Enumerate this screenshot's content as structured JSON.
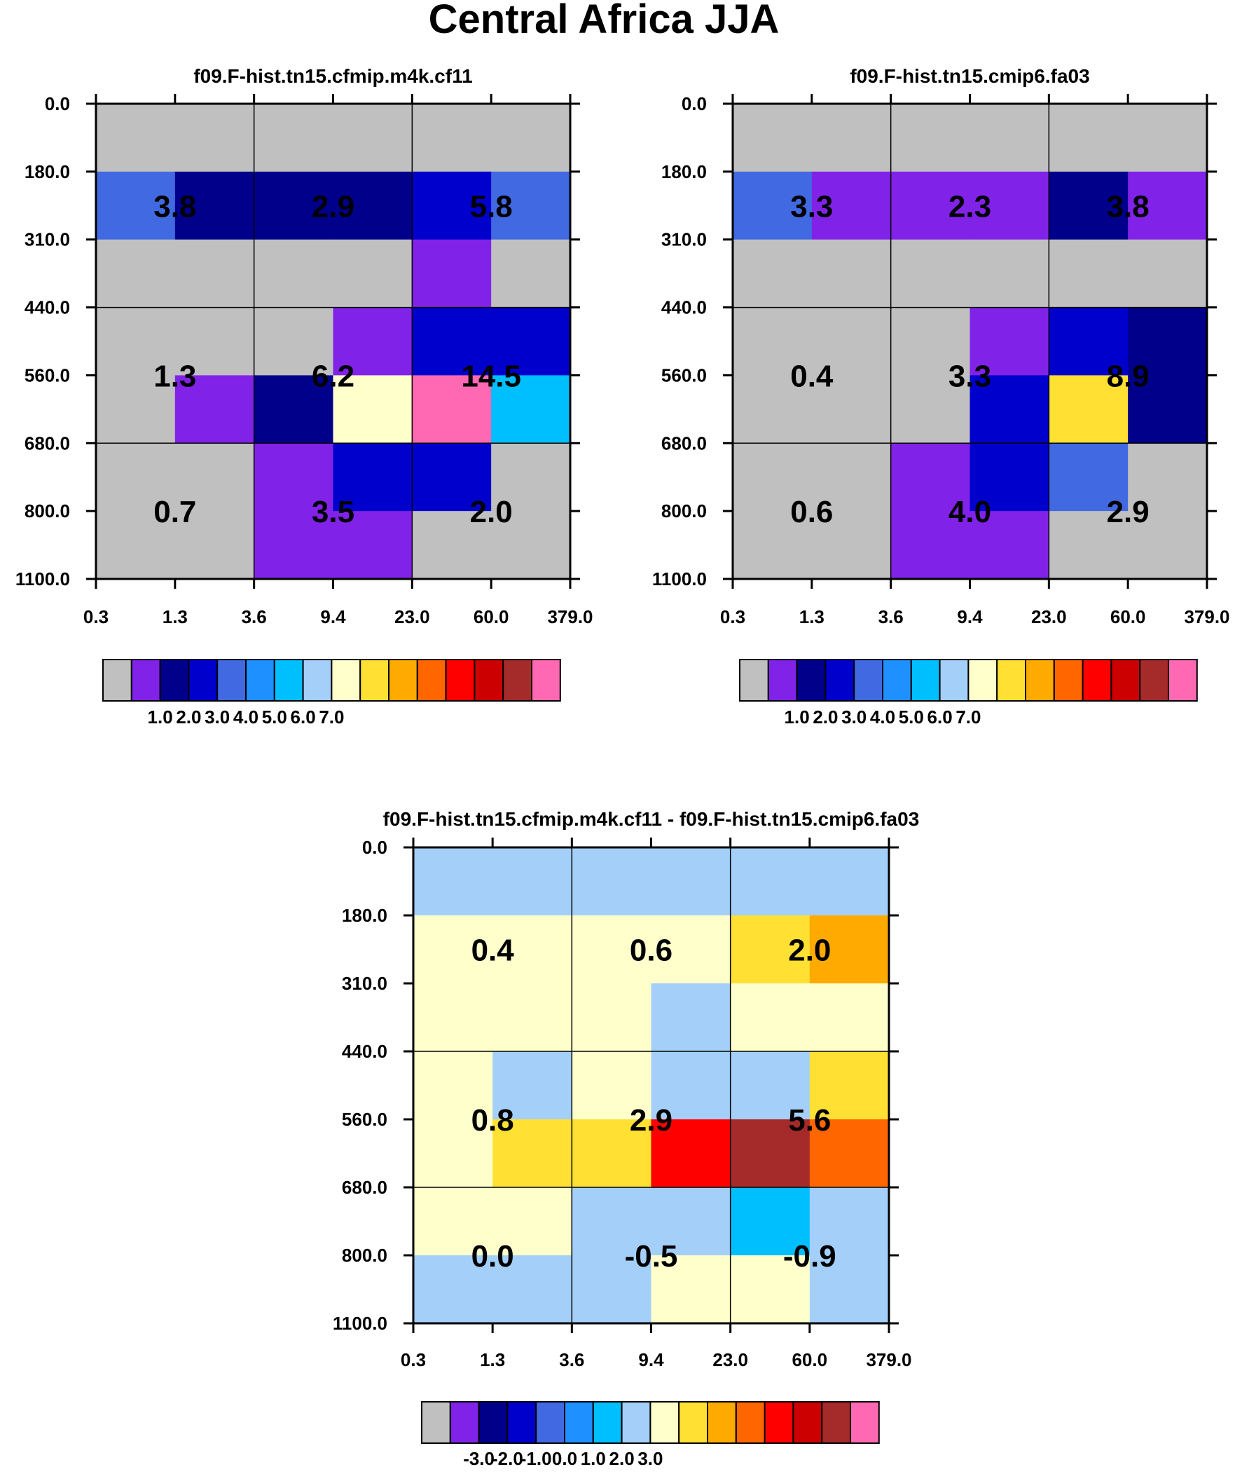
{
  "title": "Central Africa JJA",
  "colors": {
    "palette": [
      "#c0c0c0",
      "#8122e8",
      "#00008b",
      "#0000cd",
      "#4169e1",
      "#1e90ff",
      "#00bfff",
      "#a4cff9",
      "#ffffcc",
      "#ffe033",
      "#ffaa00",
      "#ff6600",
      "#ff0000",
      "#cc0000",
      "#a52a2a",
      "#ff69b4"
    ]
  },
  "chart_data": [
    {
      "type": "heatmap",
      "title": "f09.F-hist.tn15.cfmip.m4k.cf11",
      "x_ticks": [
        "0.3",
        "1.3",
        "3.6",
        "9.4",
        "23.0",
        "60.0",
        "379.0"
      ],
      "y_ticks": [
        "0.0",
        "180.0",
        "310.0",
        "440.0",
        "560.0",
        "680.0",
        "800.0",
        "1100.0"
      ],
      "cells": [
        [
          0,
          0,
          0,
          0,
          0,
          0
        ],
        [
          4,
          2,
          2,
          2,
          3,
          4
        ],
        [
          0,
          0,
          0,
          0,
          1,
          0
        ],
        [
          0,
          0,
          0,
          1,
          3,
          3
        ],
        [
          0,
          1,
          2,
          8,
          15,
          6
        ],
        [
          0,
          0,
          1,
          3,
          3,
          0
        ],
        [
          0,
          0,
          1,
          1,
          0,
          0
        ]
      ],
      "labels": [
        {
          "text": "3.8",
          "col": 1,
          "row": 1.5
        },
        {
          "text": "2.9",
          "col": 3,
          "row": 1.5
        },
        {
          "text": "5.8",
          "col": 5,
          "row": 1.5
        },
        {
          "text": "1.3",
          "col": 1,
          "row": 4
        },
        {
          "text": "6.2",
          "col": 3,
          "row": 4
        },
        {
          "text": "14.5",
          "col": 5,
          "row": 4
        },
        {
          "text": "0.7",
          "col": 1,
          "row": 6
        },
        {
          "text": "3.5",
          "col": 3,
          "row": 6
        },
        {
          "text": "2.0",
          "col": 5,
          "row": 6
        }
      ],
      "colorbar_labels": [
        "1.0",
        "2.0",
        "3.0",
        "4.0",
        "5.0",
        "6.0",
        "7.0"
      ]
    },
    {
      "type": "heatmap",
      "title": "f09.F-hist.tn15.cmip6.fa03",
      "x_ticks": [
        "0.3",
        "1.3",
        "3.6",
        "9.4",
        "23.0",
        "60.0",
        "379.0"
      ],
      "y_ticks": [
        "0.0",
        "180.0",
        "310.0",
        "440.0",
        "560.0",
        "680.0",
        "800.0",
        "1100.0"
      ],
      "cells": [
        [
          0,
          0,
          0,
          0,
          0,
          0
        ],
        [
          4,
          1,
          1,
          1,
          2,
          1
        ],
        [
          0,
          0,
          0,
          0,
          0,
          0
        ],
        [
          0,
          0,
          0,
          1,
          3,
          2
        ],
        [
          0,
          0,
          0,
          3,
          9,
          2
        ],
        [
          0,
          0,
          1,
          3,
          4,
          0
        ],
        [
          0,
          0,
          1,
          1,
          0,
          0
        ]
      ],
      "labels": [
        {
          "text": "3.3",
          "col": 1,
          "row": 1.5
        },
        {
          "text": "2.3",
          "col": 3,
          "row": 1.5
        },
        {
          "text": "3.8",
          "col": 5,
          "row": 1.5
        },
        {
          "text": "0.4",
          "col": 1,
          "row": 4
        },
        {
          "text": "3.3",
          "col": 3,
          "row": 4
        },
        {
          "text": "8.9",
          "col": 5,
          "row": 4
        },
        {
          "text": "0.6",
          "col": 1,
          "row": 6
        },
        {
          "text": "4.0",
          "col": 3,
          "row": 6
        },
        {
          "text": "2.9",
          "col": 5,
          "row": 6
        }
      ],
      "colorbar_labels": [
        "1.0",
        "2.0",
        "3.0",
        "4.0",
        "5.0",
        "6.0",
        "7.0"
      ]
    },
    {
      "type": "heatmap",
      "title": "f09.F-hist.tn15.cfmip.m4k.cf11 - f09.F-hist.tn15.cmip6.fa03",
      "x_ticks": [
        "0.3",
        "1.3",
        "3.6",
        "9.4",
        "23.0",
        "60.0",
        "379.0"
      ],
      "y_ticks": [
        "0.0",
        "180.0",
        "310.0",
        "440.0",
        "560.0",
        "680.0",
        "800.0",
        "1100.0"
      ],
      "cells": [
        [
          7,
          7,
          7,
          7,
          7,
          7
        ],
        [
          8,
          8,
          8,
          8,
          9,
          10
        ],
        [
          8,
          8,
          8,
          7,
          8,
          8
        ],
        [
          8,
          7,
          8,
          7,
          7,
          9
        ],
        [
          8,
          9,
          9,
          12,
          14,
          11
        ],
        [
          8,
          8,
          7,
          7,
          6,
          7
        ],
        [
          7,
          7,
          7,
          8,
          8,
          7
        ]
      ],
      "labels": [
        {
          "text": "0.4",
          "col": 1,
          "row": 1.5
        },
        {
          "text": "0.6",
          "col": 3,
          "row": 1.5
        },
        {
          "text": "2.0",
          "col": 5,
          "row": 1.5
        },
        {
          "text": "0.8",
          "col": 1,
          "row": 4
        },
        {
          "text": "2.9",
          "col": 3,
          "row": 4
        },
        {
          "text": "5.6",
          "col": 5,
          "row": 4
        },
        {
          "text": "0.0",
          "col": 1,
          "row": 6
        },
        {
          "text": "-0.5",
          "col": 3,
          "row": 6
        },
        {
          "text": "-0.9",
          "col": 5,
          "row": 6
        }
      ],
      "colorbar_labels": [
        "-3.0",
        "-2.0",
        "-1.0",
        "0.0",
        "1.0",
        "2.0",
        "3.0"
      ]
    }
  ]
}
